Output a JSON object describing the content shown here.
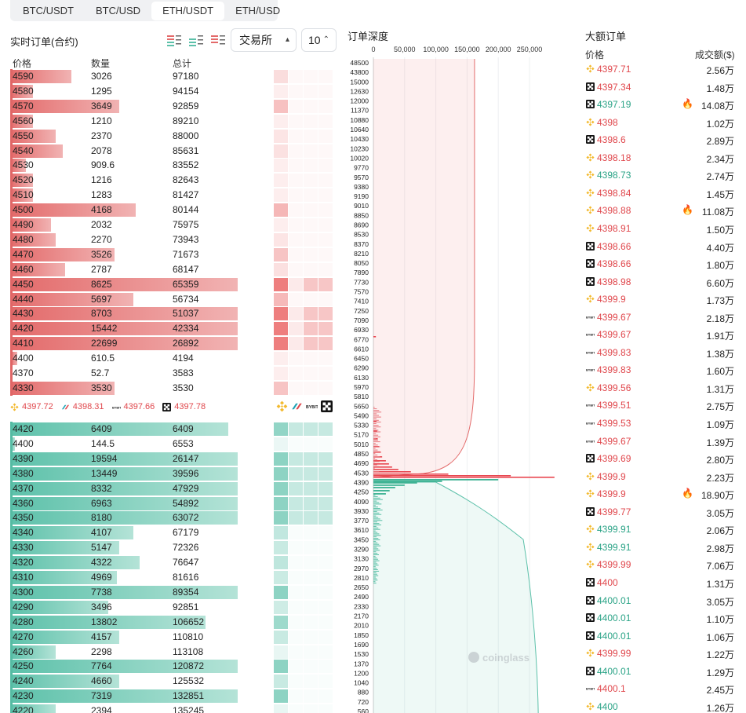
{
  "tabs": [
    "BTC/USDT",
    "BTC/USD",
    "ETH/USDT",
    "ETH/USD"
  ],
  "active_tab": 2,
  "orderbook": {
    "title": "实时订单(合约)",
    "exchange_select": "交易所",
    "step_select": "10",
    "headers": {
      "price": "价格",
      "qty": "数量",
      "total": "总计"
    },
    "asks": [
      {
        "price": "4590",
        "qty": "3026",
        "total": "97180",
        "w": 0.27
      },
      {
        "price": "4580",
        "qty": "1295",
        "total": "94154",
        "w": 0.1
      },
      {
        "price": "4570",
        "qty": "3649",
        "total": "92859",
        "w": 0.48
      },
      {
        "price": "4560",
        "qty": "1210",
        "total": "89210",
        "w": 0.1
      },
      {
        "price": "4550",
        "qty": "2370",
        "total": "88000",
        "w": 0.2
      },
      {
        "price": "4540",
        "qty": "2078",
        "total": "85631",
        "w": 0.23
      },
      {
        "price": "4530",
        "qty": "909.6",
        "total": "83552",
        "w": 0.07
      },
      {
        "price": "4520",
        "qty": "1216",
        "total": "82643",
        "w": 0.1
      },
      {
        "price": "4510",
        "qty": "1283",
        "total": "81427",
        "w": 0.1
      },
      {
        "price": "4500",
        "qty": "4168",
        "total": "80144",
        "w": 0.55
      },
      {
        "price": "4490",
        "qty": "2032",
        "total": "75975",
        "w": 0.18
      },
      {
        "price": "4480",
        "qty": "2270",
        "total": "73943",
        "w": 0.2
      },
      {
        "price": "4470",
        "qty": "3526",
        "total": "71673",
        "w": 0.46
      },
      {
        "price": "4460",
        "qty": "2787",
        "total": "68147",
        "w": 0.24
      },
      {
        "price": "4450",
        "qty": "8625",
        "total": "65359",
        "w": 1.0
      },
      {
        "price": "4440",
        "qty": "5697",
        "total": "56734",
        "w": 0.54
      },
      {
        "price": "4430",
        "qty": "8703",
        "total": "51037",
        "w": 1.0
      },
      {
        "price": "4420",
        "qty": "15442",
        "total": "42334",
        "w": 1.0
      },
      {
        "price": "4410",
        "qty": "22699",
        "total": "26892",
        "w": 1.0
      },
      {
        "price": "4400",
        "qty": "610.5",
        "total": "4194",
        "w": 0.03
      },
      {
        "price": "4370",
        "qty": "52.7",
        "total": "3583",
        "w": 0.0
      },
      {
        "price": "4330",
        "qty": "3530",
        "total": "3530",
        "w": 0.46
      }
    ],
    "mid_prices": [
      {
        "exchange": "binance",
        "price": "4397.72"
      },
      {
        "exchange": "bitget",
        "price": "4398.31"
      },
      {
        "exchange": "bybit",
        "price": "4397.66"
      },
      {
        "exchange": "okx",
        "price": "4397.78"
      }
    ],
    "bids": [
      {
        "price": "4420",
        "qty": "6409",
        "total": "6409",
        "w": 0.96
      },
      {
        "price": "4400",
        "qty": "144.5",
        "total": "6553",
        "w": 0.02
      },
      {
        "price": "4390",
        "qty": "19594",
        "total": "26147",
        "w": 1.0
      },
      {
        "price": "4380",
        "qty": "13449",
        "total": "39596",
        "w": 1.0
      },
      {
        "price": "4370",
        "qty": "8332",
        "total": "47929",
        "w": 1.0
      },
      {
        "price": "4360",
        "qty": "6963",
        "total": "54892",
        "w": 1.0
      },
      {
        "price": "4350",
        "qty": "8180",
        "total": "63072",
        "w": 1.0
      },
      {
        "price": "4340",
        "qty": "4107",
        "total": "67179",
        "w": 0.54
      },
      {
        "price": "4330",
        "qty": "5147",
        "total": "72326",
        "w": 0.48
      },
      {
        "price": "4320",
        "qty": "4322",
        "total": "76647",
        "w": 0.57
      },
      {
        "price": "4310",
        "qty": "4969",
        "total": "81616",
        "w": 0.47
      },
      {
        "price": "4300",
        "qty": "7738",
        "total": "89354",
        "w": 1.0
      },
      {
        "price": "4290",
        "qty": "3496",
        "total": "92851",
        "w": 0.43
      },
      {
        "price": "4280",
        "qty": "13802",
        "total": "106652",
        "w": 0.86
      },
      {
        "price": "4270",
        "qty": "4157",
        "total": "110810",
        "w": 0.48
      },
      {
        "price": "4260",
        "qty": "2298",
        "total": "113108",
        "w": 0.2
      },
      {
        "price": "4250",
        "qty": "7764",
        "total": "120872",
        "w": 1.0
      },
      {
        "price": "4240",
        "qty": "4660",
        "total": "125532",
        "w": 0.48
      },
      {
        "price": "4230",
        "qty": "7319",
        "total": "132851",
        "w": 1.0
      },
      {
        "price": "4220",
        "qty": "2394",
        "total": "135245",
        "w": 0.2
      }
    ]
  },
  "depth": {
    "title": "订单深度",
    "x_ticks": [
      "0",
      "50,000",
      "100,000",
      "150,000",
      "200,000",
      "250,000"
    ],
    "y_ticks": [
      "48500",
      "43800",
      "15000",
      "12630",
      "12000",
      "11370",
      "10880",
      "10640",
      "10430",
      "10230",
      "10020",
      "9770",
      "9570",
      "9380",
      "9190",
      "9010",
      "8850",
      "8690",
      "8530",
      "8370",
      "8210",
      "8050",
      "7890",
      "7730",
      "7570",
      "7410",
      "7250",
      "7090",
      "6930",
      "6770",
      "6610",
      "6450",
      "6290",
      "6130",
      "5970",
      "5810",
      "5650",
      "5490",
      "5330",
      "5170",
      "5010",
      "4850",
      "4690",
      "4530",
      "4390",
      "4250",
      "4090",
      "3930",
      "3770",
      "3610",
      "3450",
      "3290",
      "3130",
      "2970",
      "2810",
      "2650",
      "2490",
      "2330",
      "2170",
      "2010",
      "1850",
      "1690",
      "1530",
      "1370",
      "1200",
      "1040",
      "880",
      "720",
      "560"
    ],
    "watermark": "coinglass"
  },
  "large_orders": {
    "title": "大额订单",
    "headers": {
      "price": "价格",
      "amount": "成交额($)"
    },
    "rows": [
      {
        "ex": "binance",
        "price": "4397.71",
        "color": "red",
        "amount": "2.56万",
        "fire": false
      },
      {
        "ex": "okx",
        "price": "4397.34",
        "color": "red",
        "amount": "1.48万",
        "fire": false
      },
      {
        "ex": "okx",
        "price": "4397.19",
        "color": "green",
        "amount": "14.08万",
        "fire": true
      },
      {
        "ex": "binance",
        "price": "4398",
        "color": "red",
        "amount": "1.02万",
        "fire": false
      },
      {
        "ex": "okx",
        "price": "4398.6",
        "color": "red",
        "amount": "2.89万",
        "fire": false
      },
      {
        "ex": "binance",
        "price": "4398.18",
        "color": "red",
        "amount": "2.34万",
        "fire": false
      },
      {
        "ex": "binance",
        "price": "4398.73",
        "color": "green",
        "amount": "2.74万",
        "fire": false
      },
      {
        "ex": "binance",
        "price": "4398.84",
        "color": "red",
        "amount": "1.45万",
        "fire": false
      },
      {
        "ex": "binance",
        "price": "4398.88",
        "color": "red",
        "amount": "11.08万",
        "fire": true
      },
      {
        "ex": "binance",
        "price": "4398.91",
        "color": "red",
        "amount": "1.50万",
        "fire": false
      },
      {
        "ex": "okx",
        "price": "4398.66",
        "color": "red",
        "amount": "4.40万",
        "fire": false
      },
      {
        "ex": "okx",
        "price": "4398.66",
        "color": "red",
        "amount": "1.80万",
        "fire": false
      },
      {
        "ex": "okx",
        "price": "4398.98",
        "color": "red",
        "amount": "6.60万",
        "fire": false
      },
      {
        "ex": "binance",
        "price": "4399.9",
        "color": "red",
        "amount": "1.73万",
        "fire": false
      },
      {
        "ex": "bybit",
        "price": "4399.67",
        "color": "red",
        "amount": "2.18万",
        "fire": false
      },
      {
        "ex": "bybit",
        "price": "4399.67",
        "color": "red",
        "amount": "1.91万",
        "fire": false
      },
      {
        "ex": "bybit",
        "price": "4399.83",
        "color": "red",
        "amount": "1.38万",
        "fire": false
      },
      {
        "ex": "bybit",
        "price": "4399.83",
        "color": "red",
        "amount": "1.60万",
        "fire": false
      },
      {
        "ex": "binance",
        "price": "4399.56",
        "color": "red",
        "amount": "1.31万",
        "fire": false
      },
      {
        "ex": "bybit",
        "price": "4399.51",
        "color": "red",
        "amount": "2.75万",
        "fire": false
      },
      {
        "ex": "bybit",
        "price": "4399.53",
        "color": "red",
        "amount": "1.09万",
        "fire": false
      },
      {
        "ex": "bybit",
        "price": "4399.67",
        "color": "red",
        "amount": "1.39万",
        "fire": false
      },
      {
        "ex": "okx",
        "price": "4399.69",
        "color": "red",
        "amount": "2.80万",
        "fire": false
      },
      {
        "ex": "binance",
        "price": "4399.9",
        "color": "red",
        "amount": "2.23万",
        "fire": false
      },
      {
        "ex": "binance",
        "price": "4399.9",
        "color": "red",
        "amount": "18.90万",
        "fire": true
      },
      {
        "ex": "okx",
        "price": "4399.77",
        "color": "red",
        "amount": "3.05万",
        "fire": false
      },
      {
        "ex": "binance",
        "price": "4399.91",
        "color": "green",
        "amount": "2.06万",
        "fire": false
      },
      {
        "ex": "binance",
        "price": "4399.91",
        "color": "green",
        "amount": "2.98万",
        "fire": false
      },
      {
        "ex": "binance",
        "price": "4399.99",
        "color": "red",
        "amount": "7.06万",
        "fire": false
      },
      {
        "ex": "okx",
        "price": "4400",
        "color": "red",
        "amount": "1.31万",
        "fire": false
      },
      {
        "ex": "okx",
        "price": "4400.01",
        "color": "green",
        "amount": "3.05万",
        "fire": false
      },
      {
        "ex": "okx",
        "price": "4400.01",
        "color": "green",
        "amount": "1.10万",
        "fire": false
      },
      {
        "ex": "okx",
        "price": "4400.01",
        "color": "green",
        "amount": "1.06万",
        "fire": false
      },
      {
        "ex": "binance",
        "price": "4399.99",
        "color": "red",
        "amount": "1.22万",
        "fire": false
      },
      {
        "ex": "okx",
        "price": "4400.01",
        "color": "green",
        "amount": "1.29万",
        "fire": false
      },
      {
        "ex": "bybit",
        "price": "4400.1",
        "color": "red",
        "amount": "2.45万",
        "fire": false
      },
      {
        "ex": "binance",
        "price": "4400",
        "color": "green",
        "amount": "1.26万",
        "fire": false
      }
    ]
  },
  "colors": {
    "ask": "#e36a6a",
    "bid": "#5dc1aa",
    "red_text": "#e0474c",
    "green_text": "#2aa386",
    "binance": "#f3ba2f"
  }
}
